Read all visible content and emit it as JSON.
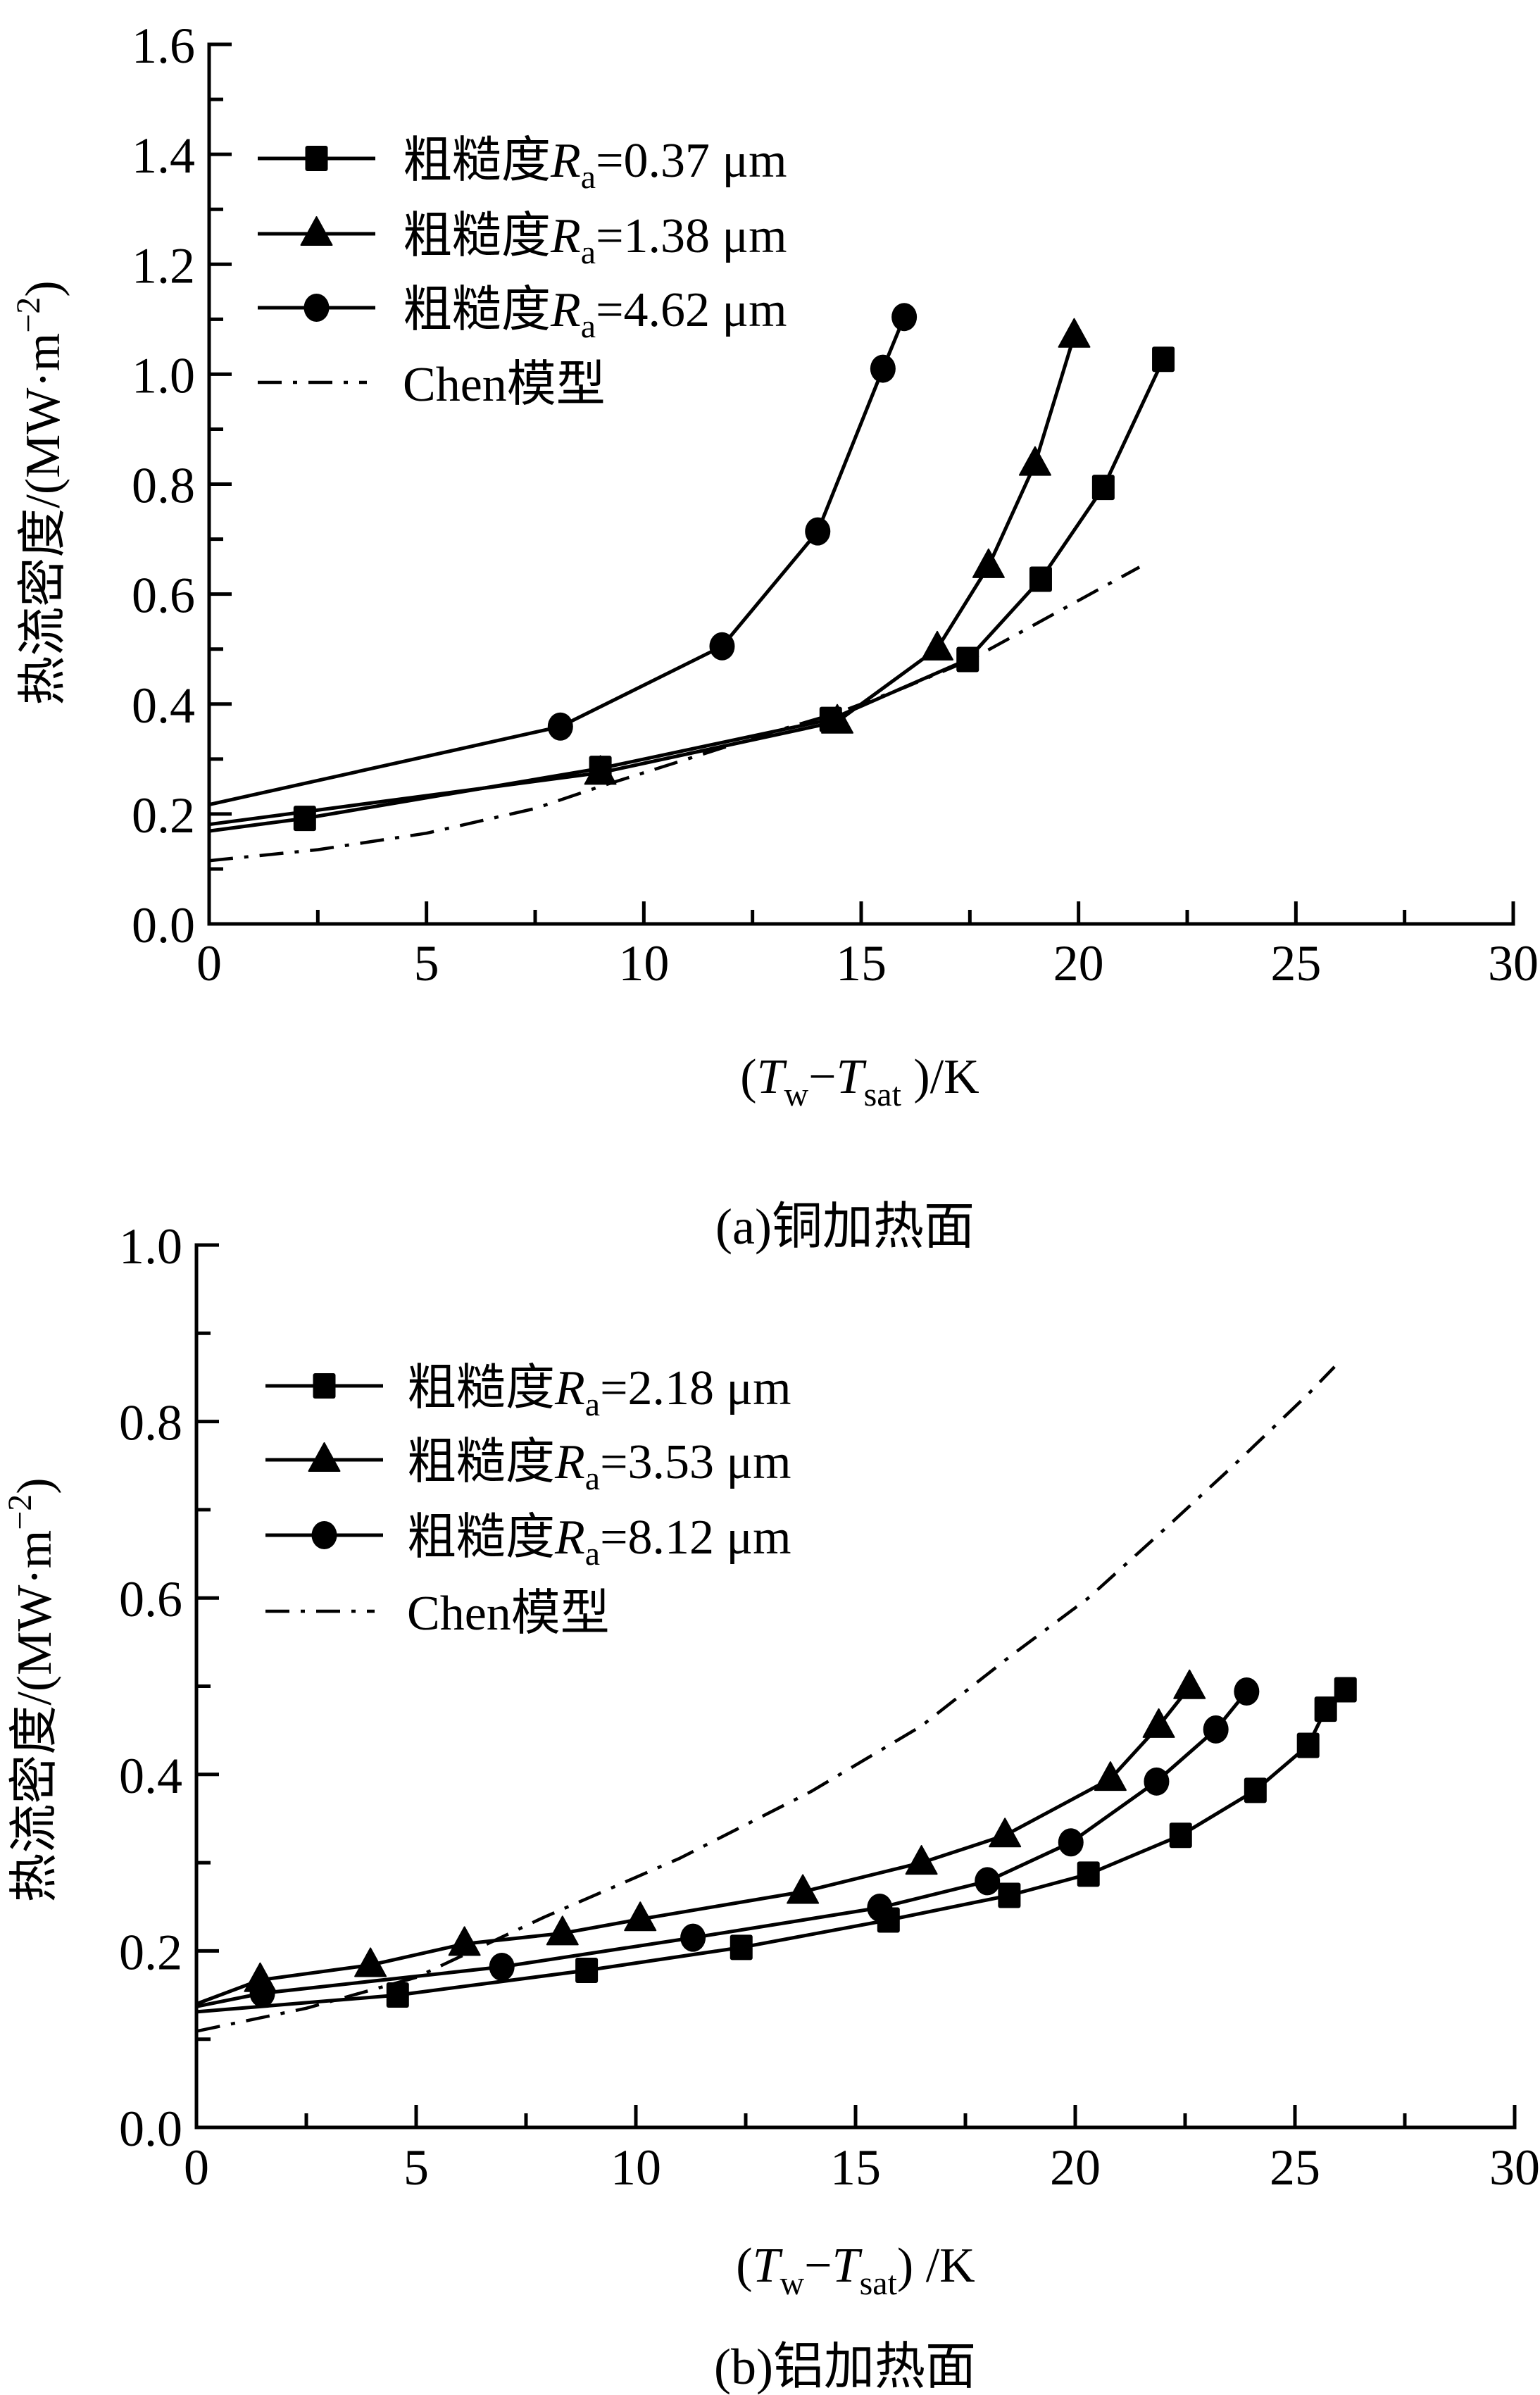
{
  "chart_data": [
    {
      "type": "line",
      "caption": "(a)铜加热面",
      "xlabel": "(Tw−Tsat )/K",
      "xlabel_parts": {
        "open": "(",
        "T1": "T",
        "sub1": "w",
        "dash": "−",
        "T2": "T",
        "sub2": "sat",
        "close": " )/K"
      },
      "ylabel": "热流密度/(MW·m−2)",
      "ylabel_parts": {
        "main": "热流密度/(MW·m",
        "sup": "−2",
        "close": ")"
      },
      "xlim": [
        0,
        30
      ],
      "ylim": [
        0,
        1.6
      ],
      "xticks": [
        "0",
        "5",
        "10",
        "15",
        "20",
        "25",
        "30"
      ],
      "yticks": [
        "0.0",
        "0.2",
        "0.4",
        "0.6",
        "0.8",
        "1.0",
        "1.2",
        "1.4",
        "1.6"
      ],
      "legend_position": "top-left",
      "series": [
        {
          "name": "粗糙度Ra=0.37 μm",
          "label_parts": {
            "pre": "粗糙度",
            "R": "R",
            "sub": "a",
            "post": "=0.37 μm"
          },
          "marker": "square",
          "line_start": 0.169,
          "x": [
            2.2,
            9.0,
            14.3,
            17.45,
            19.13,
            20.57,
            21.95
          ],
          "y": [
            0.192,
            0.283,
            0.372,
            0.481,
            0.627,
            0.794,
            1.027
          ]
        },
        {
          "name": "粗糙度Ra=1.38 μm",
          "label_parts": {
            "pre": "粗糙度",
            "R": "R",
            "sub": "a",
            "post": "=1.38 μm"
          },
          "marker": "triangle",
          "line_start": 0.181,
          "x": [
            9.0,
            14.45,
            16.75,
            17.93,
            19.0,
            19.9
          ],
          "y": [
            0.275,
            0.368,
            0.501,
            0.651,
            0.837,
            1.07
          ]
        },
        {
          "name": "粗糙度Ra=4.62 μm",
          "label_parts": {
            "pre": "粗糙度",
            "R": "R",
            "sub": "a",
            "post": "=4.62 μm"
          },
          "marker": "circle",
          "line_start": 0.217,
          "x": [
            8.08,
            11.8,
            14.0,
            15.5,
            15.99
          ],
          "y": [
            0.359,
            0.505,
            0.714,
            1.01,
            1.104
          ]
        },
        {
          "name": "Chen模型",
          "label_parts": {
            "pre": "Chen模型",
            "R": "",
            "sub": "",
            "post": ""
          },
          "marker": "none",
          "dash": "dash-dot",
          "x": [
            0,
            2.5,
            5,
            7.5,
            9,
            11,
            13,
            14.5,
            16,
            17.5,
            19,
            20.5,
            21.4
          ],
          "y": [
            0.115,
            0.135,
            0.165,
            0.21,
            0.25,
            0.3,
            0.35,
            0.385,
            0.43,
            0.48,
            0.545,
            0.61,
            0.649
          ]
        }
      ]
    },
    {
      "type": "line",
      "caption": "(b)铝加热面",
      "xlabel": "(Tw−Tsat) /K",
      "xlabel_parts": {
        "open": "(",
        "T1": "T",
        "sub1": "w",
        "dash": "−",
        "T2": "T",
        "sub2": "sat",
        "close": ") /K"
      },
      "ylabel": "热流密度/(MW·m−2)",
      "ylabel_parts": {
        "main": "热流密度/(MW·m",
        "sup": "−2",
        "close": ")"
      },
      "xlim": [
        0,
        30
      ],
      "ylim": [
        0,
        1.0
      ],
      "xticks": [
        "0",
        "5",
        "10",
        "15",
        "20",
        "25",
        "30"
      ],
      "yticks": [
        "0.0",
        "0.2",
        "0.4",
        "0.6",
        "0.8",
        "1.0"
      ],
      "legend_position": "top-left",
      "series": [
        {
          "name": "粗糙度Ra=2.18 μm",
          "label_parts": {
            "pre": "粗糙度",
            "R": "R",
            "sub": "a",
            "post": "=2.18 μm"
          },
          "marker": "square",
          "line_start": 0.131,
          "x": [
            4.58,
            8.88,
            12.4,
            15.75,
            18.5,
            20.3,
            22.4,
            24.1,
            25.3,
            25.7,
            26.15
          ],
          "y": [
            0.15,
            0.178,
            0.204,
            0.235,
            0.263,
            0.287,
            0.331,
            0.382,
            0.433,
            0.474,
            0.496
          ]
        },
        {
          "name": "粗糙度Ra=3.53 μm",
          "label_parts": {
            "pre": "粗糙度",
            "R": "R",
            "sub": "a",
            "post": "=3.53 μm"
          },
          "marker": "triangle",
          "line_start": 0.14,
          "x": [
            1.45,
            3.96,
            6.1,
            8.33,
            10.1,
            13.8,
            16.5,
            18.4,
            20.8,
            21.9,
            22.6
          ],
          "y": [
            0.167,
            0.184,
            0.208,
            0.22,
            0.236,
            0.267,
            0.3,
            0.331,
            0.395,
            0.455,
            0.499
          ]
        },
        {
          "name": "粗糙度Ra=8.12 μm",
          "label_parts": {
            "pre": "粗糙度",
            "R": "R",
            "sub": "a",
            "post": "=8.12 μm"
          },
          "marker": "circle",
          "line_start": 0.137,
          "x": [
            1.5,
            6.95,
            11.3,
            15.55,
            18.0,
            19.9,
            21.85,
            23.2,
            23.9
          ],
          "y": [
            0.152,
            0.182,
            0.215,
            0.249,
            0.279,
            0.323,
            0.392,
            0.451,
            0.494
          ]
        },
        {
          "name": "Chen模型",
          "label_parts": {
            "pre": "Chen模型",
            "R": "",
            "sub": "",
            "post": ""
          },
          "marker": "none",
          "dash": "dash-dot",
          "x": [
            0,
            2.5,
            5,
            7.9,
            11,
            14.0,
            16.5,
            18.55,
            20.3,
            21.9,
            23.6,
            25.3,
            25.9
          ],
          "y": [
            0.109,
            0.135,
            0.17,
            0.238,
            0.305,
            0.381,
            0.455,
            0.535,
            0.6,
            0.672,
            0.75,
            0.831,
            0.862
          ]
        }
      ]
    }
  ]
}
